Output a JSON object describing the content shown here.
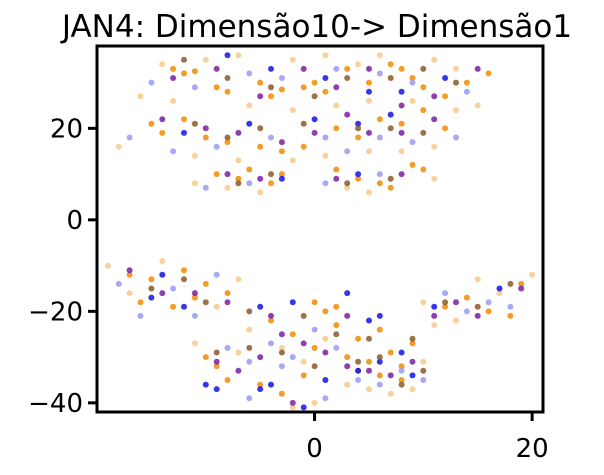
{
  "chart_data": {
    "type": "scatter",
    "title": "JAN4: Dimensão10-> Dimensão1",
    "xlabel": "",
    "ylabel": "",
    "xlim": [
      -20,
      21
    ],
    "ylim": [
      -42,
      38
    ],
    "xticks": [
      0,
      20
    ],
    "xtick_labels": [
      "0",
      "20"
    ],
    "yticks": [
      20,
      0,
      -20,
      -40
    ],
    "ytick_labels": [
      "20",
      "0",
      "−20",
      "−40"
    ],
    "grid": false,
    "legend": "none",
    "colors": {
      "orange": "#f28c00",
      "light_orange": "#f7c98a",
      "blue": "#1414e6",
      "light_blue": "#9b9bf2",
      "purple": "#7a1fa2",
      "brown": "#8a5a2b"
    },
    "series": [
      {
        "color": "#f28c00",
        "points": [
          [
            -13,
            33
          ],
          [
            -12,
            32
          ],
          [
            -11,
            32.5
          ],
          [
            -9,
            29
          ],
          [
            -8,
            28
          ],
          [
            -5,
            30
          ],
          [
            -4,
            27
          ],
          [
            -3,
            28.5
          ],
          [
            -1,
            29
          ],
          [
            0,
            30
          ],
          [
            1,
            28
          ],
          [
            3,
            33
          ],
          [
            5,
            30
          ],
          [
            7,
            34
          ],
          [
            8,
            33
          ],
          [
            9,
            31
          ],
          [
            10,
            29
          ],
          [
            12,
            27
          ],
          [
            14,
            30
          ],
          [
            16,
            32
          ],
          [
            -15,
            21
          ],
          [
            -14,
            19
          ],
          [
            -12,
            22
          ],
          [
            -10,
            18
          ],
          [
            -8,
            17
          ],
          [
            -5,
            16
          ],
          [
            -3,
            15
          ],
          [
            -1,
            16
          ],
          [
            2,
            20
          ],
          [
            4,
            18
          ],
          [
            6,
            22
          ],
          [
            8,
            21
          ],
          [
            10,
            24
          ],
          [
            12,
            20
          ],
          [
            -9,
            10
          ],
          [
            -7,
            9
          ],
          [
            -6,
            11
          ],
          [
            -4,
            8
          ],
          [
            -3,
            10
          ],
          [
            2,
            11
          ],
          [
            4,
            9
          ],
          [
            6,
            8
          ],
          [
            7,
            7
          ],
          [
            9,
            12
          ],
          [
            10,
            11
          ],
          [
            -17,
            -12
          ],
          [
            -15,
            -13
          ],
          [
            -12,
            -11
          ],
          [
            -10,
            -14
          ],
          [
            -8,
            -16
          ],
          [
            -16,
            -18
          ],
          [
            -13,
            -19
          ],
          [
            -11,
            -17
          ],
          [
            12,
            -19
          ],
          [
            14,
            -17
          ],
          [
            16,
            -20
          ],
          [
            18,
            -21
          ],
          [
            19,
            -14
          ],
          [
            -10,
            -30
          ],
          [
            -9,
            -32
          ],
          [
            -8,
            -35
          ],
          [
            -4,
            -22
          ],
          [
            -2,
            -25
          ],
          [
            0,
            -28
          ],
          [
            1,
            -20
          ],
          [
            2,
            -23
          ],
          [
            3,
            -30
          ],
          [
            4,
            -33
          ],
          [
            5,
            -31
          ],
          [
            6,
            -34
          ],
          [
            7,
            -29
          ],
          [
            8,
            -35
          ],
          [
            9,
            -27
          ],
          [
            -5,
            -36
          ],
          [
            -3,
            -38
          ],
          [
            -1,
            -34
          ],
          [
            0,
            -18
          ],
          [
            2,
            -19
          ],
          [
            4,
            -26
          ],
          [
            6,
            -24
          ],
          [
            8,
            -32
          ]
        ]
      },
      {
        "color": "#f7c98a",
        "points": [
          [
            -14,
            34
          ],
          [
            -10,
            35
          ],
          [
            -7,
            36
          ],
          [
            -2,
            35
          ],
          [
            1,
            36
          ],
          [
            4,
            34
          ],
          [
            6,
            36
          ],
          [
            11,
            35
          ],
          [
            13,
            33
          ],
          [
            -16,
            27
          ],
          [
            -13,
            26
          ],
          [
            -6,
            25
          ],
          [
            -2,
            24
          ],
          [
            2,
            25
          ],
          [
            5,
            26
          ],
          [
            9,
            26
          ],
          [
            13,
            24
          ],
          [
            15,
            25
          ],
          [
            -18,
            16
          ],
          [
            -11,
            14
          ],
          [
            -7,
            13
          ],
          [
            -2,
            13
          ],
          [
            1,
            14
          ],
          [
            5,
            15
          ],
          [
            8,
            15
          ],
          [
            11,
            16
          ],
          [
            -11,
            8
          ],
          [
            -8,
            7
          ],
          [
            -5,
            6
          ],
          [
            3,
            7
          ],
          [
            5,
            6
          ],
          [
            11,
            9
          ],
          [
            -19,
            -10
          ],
          [
            -17,
            -16
          ],
          [
            -14,
            -9
          ],
          [
            -9,
            -19
          ],
          [
            -7,
            -13
          ],
          [
            10,
            -18
          ],
          [
            13,
            -22
          ],
          [
            15,
            -13
          ],
          [
            17,
            -16
          ],
          [
            20,
            -12
          ],
          [
            -11,
            -27
          ],
          [
            -7,
            -29
          ],
          [
            -6,
            -24
          ],
          [
            -3,
            -28
          ],
          [
            -1,
            -31
          ],
          [
            1,
            -26
          ],
          [
            3,
            -36
          ],
          [
            5,
            -37
          ],
          [
            7,
            -38
          ],
          [
            9,
            -37
          ],
          [
            10,
            -31
          ],
          [
            -2,
            -41
          ],
          [
            0,
            -40
          ],
          [
            11,
            -23
          ]
        ]
      },
      {
        "color": "#1414e6",
        "points": [
          [
            -8,
            36
          ],
          [
            -4,
            33
          ],
          [
            1,
            31
          ],
          [
            5,
            28
          ],
          [
            8,
            28
          ],
          [
            12,
            31
          ],
          [
            -12,
            19
          ],
          [
            -6,
            21
          ],
          [
            0,
            22
          ],
          [
            4,
            21
          ],
          [
            7,
            23
          ],
          [
            -3,
            9
          ],
          [
            4,
            10
          ],
          [
            -15,
            -17
          ],
          [
            -14,
            -12
          ],
          [
            -12,
            -19
          ],
          [
            -5,
            -19
          ],
          [
            -2,
            -18
          ],
          [
            3,
            -16
          ],
          [
            5,
            -22
          ],
          [
            6,
            -21
          ],
          [
            8,
            -29
          ],
          [
            -10,
            -36
          ],
          [
            -9,
            -37
          ],
          [
            -5,
            -37
          ],
          [
            -4,
            -36
          ],
          [
            -1,
            -41
          ],
          [
            1,
            -35
          ],
          [
            4,
            -33
          ],
          [
            6,
            -31
          ],
          [
            9,
            -34
          ],
          [
            11,
            -19
          ],
          [
            17,
            -15
          ]
        ]
      },
      {
        "color": "#9b9bf2",
        "points": [
          [
            -15,
            30
          ],
          [
            -11,
            29
          ],
          [
            -6,
            32
          ],
          [
            -3,
            31
          ],
          [
            2,
            33
          ],
          [
            6,
            32
          ],
          [
            9,
            30
          ],
          [
            14,
            28
          ],
          [
            -17,
            18
          ],
          [
            -13,
            15
          ],
          [
            -9,
            16
          ],
          [
            -4,
            18
          ],
          [
            1,
            18
          ],
          [
            3,
            15
          ],
          [
            6,
            18
          ],
          [
            9,
            17
          ],
          [
            13,
            18
          ],
          [
            -10,
            7
          ],
          [
            -6,
            8
          ],
          [
            1,
            8
          ],
          [
            6,
            10
          ],
          [
            -18,
            -14
          ],
          [
            -16,
            -21
          ],
          [
            -13,
            -15
          ],
          [
            -11,
            -21
          ],
          [
            -9,
            -12
          ],
          [
            12,
            -16
          ],
          [
            14,
            -20
          ],
          [
            16,
            -18
          ],
          [
            18,
            -19
          ],
          [
            -8,
            -28
          ],
          [
            -6,
            -31
          ],
          [
            -4,
            -27
          ],
          [
            -2,
            -30
          ],
          [
            0,
            -24
          ],
          [
            2,
            -28
          ],
          [
            4,
            -35
          ],
          [
            6,
            -36
          ],
          [
            8,
            -33
          ],
          [
            10,
            -35
          ],
          [
            -6,
            -39
          ],
          [
            -3,
            -32
          ],
          [
            1,
            -39
          ]
        ]
      },
      {
        "color": "#7a1fa2",
        "points": [
          [
            -13,
            31
          ],
          [
            -9,
            33
          ],
          [
            -5,
            27
          ],
          [
            -1,
            33
          ],
          [
            2,
            29
          ],
          [
            5,
            33
          ],
          [
            8,
            25
          ],
          [
            11,
            27
          ],
          [
            15,
            33
          ],
          [
            -14,
            22
          ],
          [
            -10,
            20
          ],
          [
            -7,
            19
          ],
          [
            -3,
            17
          ],
          [
            0,
            19
          ],
          [
            3,
            23
          ],
          [
            5,
            19
          ],
          [
            8,
            19
          ],
          [
            11,
            22
          ],
          [
            -8,
            10
          ],
          [
            -5,
            9
          ],
          [
            2,
            9
          ],
          [
            8,
            10
          ],
          [
            -17,
            -11
          ],
          [
            -14,
            -16
          ],
          [
            -11,
            -16
          ],
          [
            -8,
            -18
          ],
          [
            11,
            -21
          ],
          [
            13,
            -18
          ],
          [
            15,
            -21
          ],
          [
            19,
            -15
          ],
          [
            -9,
            -31
          ],
          [
            -7,
            -33
          ],
          [
            -5,
            -30
          ],
          [
            -3,
            -25
          ],
          [
            -1,
            -27
          ],
          [
            1,
            -29
          ],
          [
            3,
            -32
          ],
          [
            5,
            -33
          ],
          [
            7,
            -34
          ],
          [
            9,
            -31
          ],
          [
            -4,
            -21
          ],
          [
            -2,
            -40
          ],
          [
            3,
            -21
          ]
        ]
      },
      {
        "color": "#8a5a2b",
        "points": [
          [
            -12,
            35
          ],
          [
            -8,
            31
          ],
          [
            -4,
            29
          ],
          [
            0,
            27
          ],
          [
            3,
            31
          ],
          [
            7,
            31
          ],
          [
            10,
            33
          ],
          [
            13,
            30
          ],
          [
            -11,
            21
          ],
          [
            -8,
            18
          ],
          [
            -5,
            20
          ],
          [
            -1,
            21
          ],
          [
            4,
            20
          ],
          [
            7,
            20
          ],
          [
            10,
            19
          ],
          [
            -7,
            8
          ],
          [
            -4,
            10
          ],
          [
            3,
            8
          ],
          [
            7,
            9
          ],
          [
            -15,
            -15
          ],
          [
            -12,
            -13
          ],
          [
            -10,
            -18
          ],
          [
            12,
            -18
          ],
          [
            15,
            -19
          ],
          [
            18,
            -14
          ],
          [
            -9,
            -29
          ],
          [
            -6,
            -28
          ],
          [
            -3,
            -29
          ],
          [
            0,
            -32
          ],
          [
            2,
            -25
          ],
          [
            4,
            -31
          ],
          [
            6,
            -30
          ],
          [
            8,
            -36
          ],
          [
            10,
            -33
          ],
          [
            -6,
            -20
          ],
          [
            -1,
            -21
          ],
          [
            5,
            -26
          ],
          [
            9,
            -26
          ]
        ]
      }
    ]
  }
}
